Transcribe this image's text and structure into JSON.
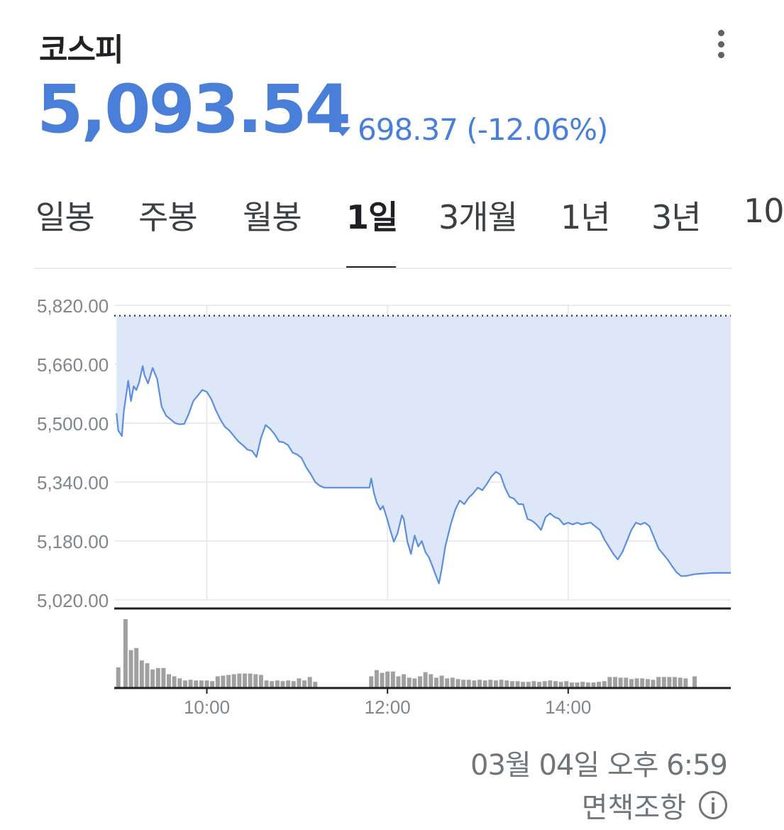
{
  "header": {
    "title": "코스피",
    "more_icon": "more-vert-icon"
  },
  "quote": {
    "price": "5,093.54",
    "change": "698.37 (-12.06%)",
    "direction_icon": "triangle-down-icon",
    "color": "#4a7fd9"
  },
  "tabs": [
    "일봉",
    "주봉",
    "월봉",
    "1일",
    "3개월",
    "1년",
    "3년",
    "10"
  ],
  "active_tab": "1일",
  "footer": {
    "timestamp": "03월 04일 오후 6:59",
    "disclaimer": "면책조항",
    "info_icon": "info-icon"
  },
  "chart_data": {
    "type": "area",
    "y_tick_labels": [
      "5,820.00",
      "5,660.00",
      "5,500.00",
      "5,340.00",
      "5,180.00",
      "5,020.00"
    ],
    "y_ticks": [
      5820,
      5660,
      5500,
      5340,
      5180,
      5020
    ],
    "ylim": [
      5020,
      5820
    ],
    "x_tick_labels": [
      "10:00",
      "12:00",
      "14:00"
    ],
    "x_ticks": [
      10,
      12,
      14
    ],
    "xlim": [
      8.975,
      15.8
    ],
    "previous_close": 5791.91,
    "line_color": "#5b8ee0",
    "fill_color": "#dde7f8",
    "volume_color": "#a0a0a0",
    "series": [
      {
        "values": [
          [
            9.0,
            5527
          ],
          [
            9.02,
            5480
          ],
          [
            9.06,
            5465
          ],
          [
            9.08,
            5530
          ],
          [
            9.13,
            5615
          ],
          [
            9.16,
            5560
          ],
          [
            9.19,
            5600
          ],
          [
            9.22,
            5590
          ],
          [
            9.25,
            5610
          ],
          [
            9.29,
            5655
          ],
          [
            9.31,
            5630
          ],
          [
            9.35,
            5608
          ],
          [
            9.4,
            5650
          ],
          [
            9.45,
            5620
          ],
          [
            9.5,
            5545
          ],
          [
            9.55,
            5520
          ],
          [
            9.6,
            5510
          ],
          [
            9.65,
            5500
          ],
          [
            9.7,
            5497
          ],
          [
            9.75,
            5498
          ],
          [
            9.8,
            5525
          ],
          [
            9.85,
            5560
          ],
          [
            9.9,
            5575
          ],
          [
            9.95,
            5590
          ],
          [
            10.0,
            5585
          ],
          [
            10.05,
            5565
          ],
          [
            10.1,
            5535
          ],
          [
            10.15,
            5510
          ],
          [
            10.2,
            5490
          ],
          [
            10.25,
            5480
          ],
          [
            10.3,
            5465
          ],
          [
            10.35,
            5450
          ],
          [
            10.4,
            5440
          ],
          [
            10.45,
            5428
          ],
          [
            10.5,
            5425
          ],
          [
            10.55,
            5408
          ],
          [
            10.6,
            5460
          ],
          [
            10.65,
            5495
          ],
          [
            10.7,
            5485
          ],
          [
            10.75,
            5470
          ],
          [
            10.8,
            5450
          ],
          [
            10.85,
            5448
          ],
          [
            10.9,
            5440
          ],
          [
            10.95,
            5420
          ],
          [
            11.0,
            5415
          ],
          [
            11.05,
            5405
          ],
          [
            11.1,
            5380
          ],
          [
            11.15,
            5362
          ],
          [
            11.2,
            5340
          ],
          [
            11.25,
            5330
          ],
          [
            11.3,
            5325
          ],
          [
            11.4,
            5325
          ],
          [
            11.5,
            5325
          ],
          [
            11.6,
            5325
          ],
          [
            11.7,
            5325
          ],
          [
            11.8,
            5325
          ],
          [
            11.82,
            5350
          ],
          [
            11.85,
            5310
          ],
          [
            11.88,
            5285
          ],
          [
            11.92,
            5265
          ],
          [
            11.95,
            5275
          ],
          [
            11.99,
            5245
          ],
          [
            12.03,
            5210
          ],
          [
            12.07,
            5178
          ],
          [
            12.11,
            5200
          ],
          [
            12.16,
            5250
          ],
          [
            12.18,
            5240
          ],
          [
            12.22,
            5178
          ],
          [
            12.26,
            5145
          ],
          [
            12.3,
            5195
          ],
          [
            12.34,
            5165
          ],
          [
            12.38,
            5180
          ],
          [
            12.42,
            5150
          ],
          [
            12.46,
            5135
          ],
          [
            12.5,
            5110
          ],
          [
            12.53,
            5090
          ],
          [
            12.57,
            5065
          ],
          [
            12.6,
            5105
          ],
          [
            12.64,
            5165
          ],
          [
            12.7,
            5225
          ],
          [
            12.75,
            5265
          ],
          [
            12.8,
            5290
          ],
          [
            12.85,
            5280
          ],
          [
            12.9,
            5298
          ],
          [
            12.95,
            5310
          ],
          [
            13.0,
            5325
          ],
          [
            13.05,
            5318
          ],
          [
            13.1,
            5335
          ],
          [
            13.15,
            5355
          ],
          [
            13.2,
            5368
          ],
          [
            13.25,
            5360
          ],
          [
            13.3,
            5325
          ],
          [
            13.35,
            5300
          ],
          [
            13.4,
            5295
          ],
          [
            13.45,
            5280
          ],
          [
            13.5,
            5280
          ],
          [
            13.55,
            5240
          ],
          [
            13.6,
            5235
          ],
          [
            13.65,
            5225
          ],
          [
            13.7,
            5210
          ],
          [
            13.75,
            5245
          ],
          [
            13.8,
            5255
          ],
          [
            13.85,
            5245
          ],
          [
            13.9,
            5240
          ],
          [
            13.95,
            5225
          ],
          [
            14.0,
            5230
          ],
          [
            14.05,
            5225
          ],
          [
            14.1,
            5230
          ],
          [
            14.15,
            5225
          ],
          [
            14.2,
            5228
          ],
          [
            14.25,
            5230
          ],
          [
            14.3,
            5220
          ],
          [
            14.35,
            5210
          ],
          [
            14.4,
            5185
          ],
          [
            14.45,
            5165
          ],
          [
            14.5,
            5145
          ],
          [
            14.55,
            5130
          ],
          [
            14.6,
            5150
          ],
          [
            14.65,
            5180
          ],
          [
            14.7,
            5210
          ],
          [
            14.75,
            5230
          ],
          [
            14.8,
            5225
          ],
          [
            14.85,
            5230
          ],
          [
            14.9,
            5220
          ],
          [
            14.95,
            5190
          ],
          [
            15.0,
            5160
          ],
          [
            15.05,
            5145
          ],
          [
            15.1,
            5130
          ],
          [
            15.15,
            5112
          ],
          [
            15.2,
            5095
          ],
          [
            15.25,
            5085
          ],
          [
            15.3,
            5085
          ],
          [
            15.4,
            5090
          ],
          [
            15.5,
            5092
          ],
          [
            15.6,
            5093.54
          ],
          [
            15.7,
            5093.54
          ],
          [
            15.8,
            5093.54
          ]
        ]
      }
    ],
    "volume_series": [
      {
        "values": [
          [
            9.02,
            30
          ],
          [
            9.1,
            100
          ],
          [
            9.16,
            55
          ],
          [
            9.22,
            58
          ],
          [
            9.28,
            40
          ],
          [
            9.34,
            36
          ],
          [
            9.4,
            27
          ],
          [
            9.46,
            29
          ],
          [
            9.52,
            29
          ],
          [
            9.58,
            20
          ],
          [
            9.64,
            17
          ],
          [
            9.7,
            14
          ],
          [
            9.76,
            11
          ],
          [
            9.82,
            12
          ],
          [
            9.88,
            11
          ],
          [
            9.94,
            11
          ],
          [
            10.0,
            11
          ],
          [
            10.06,
            10
          ],
          [
            10.12,
            17
          ],
          [
            10.18,
            18
          ],
          [
            10.24,
            19
          ],
          [
            10.3,
            20
          ],
          [
            10.36,
            21
          ],
          [
            10.42,
            21
          ],
          [
            10.48,
            21
          ],
          [
            10.54,
            20
          ],
          [
            10.6,
            19
          ],
          [
            10.66,
            11
          ],
          [
            10.72,
            10
          ],
          [
            10.78,
            11
          ],
          [
            10.84,
            10
          ],
          [
            10.9,
            11
          ],
          [
            10.96,
            10
          ],
          [
            11.02,
            14
          ],
          [
            11.08,
            11
          ],
          [
            11.14,
            16
          ],
          [
            11.2,
            9
          ],
          [
            11.82,
            17
          ],
          [
            11.88,
            26
          ],
          [
            11.94,
            22
          ],
          [
            12.0,
            24
          ],
          [
            12.06,
            24
          ],
          [
            12.12,
            17
          ],
          [
            12.18,
            20
          ],
          [
            12.24,
            15
          ],
          [
            12.3,
            14
          ],
          [
            12.36,
            17
          ],
          [
            12.42,
            23
          ],
          [
            12.48,
            20
          ],
          [
            12.54,
            15
          ],
          [
            12.6,
            18
          ],
          [
            12.66,
            14
          ],
          [
            12.72,
            15
          ],
          [
            12.78,
            13
          ],
          [
            12.84,
            12
          ],
          [
            12.9,
            12
          ],
          [
            12.96,
            11
          ],
          [
            13.02,
            12
          ],
          [
            13.08,
            11
          ],
          [
            13.14,
            12
          ],
          [
            13.2,
            11
          ],
          [
            13.26,
            12
          ],
          [
            13.32,
            11
          ],
          [
            13.38,
            10
          ],
          [
            13.44,
            10
          ],
          [
            13.5,
            9
          ],
          [
            13.56,
            9
          ],
          [
            13.62,
            10
          ],
          [
            13.68,
            9
          ],
          [
            13.74,
            10
          ],
          [
            13.8,
            11
          ],
          [
            13.86,
            10
          ],
          [
            13.92,
            9
          ],
          [
            13.98,
            10
          ],
          [
            14.04,
            8
          ],
          [
            14.1,
            8
          ],
          [
            14.16,
            9
          ],
          [
            14.22,
            8
          ],
          [
            14.28,
            8
          ],
          [
            14.34,
            9
          ],
          [
            14.4,
            10
          ],
          [
            14.46,
            16
          ],
          [
            14.52,
            16
          ],
          [
            14.58,
            15
          ],
          [
            14.64,
            15
          ],
          [
            14.7,
            13
          ],
          [
            14.76,
            14
          ],
          [
            14.82,
            14
          ],
          [
            14.88,
            13
          ],
          [
            14.94,
            12
          ],
          [
            15.0,
            16
          ],
          [
            15.06,
            16
          ],
          [
            15.12,
            16
          ],
          [
            15.18,
            16
          ],
          [
            15.24,
            15
          ],
          [
            15.3,
            14
          ],
          [
            15.4,
            17
          ]
        ]
      }
    ]
  }
}
